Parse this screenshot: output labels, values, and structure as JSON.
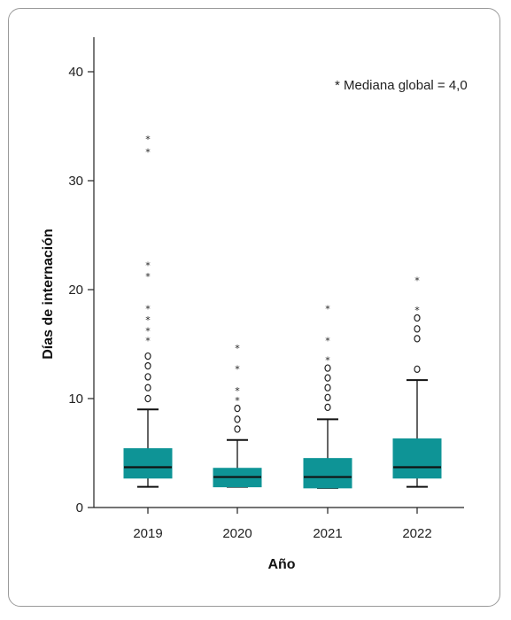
{
  "chart_data": {
    "type": "boxplot",
    "xlabel": "Año",
    "ylabel": "Días de internación",
    "ylim": [
      0,
      43
    ],
    "yticks": [
      0,
      10,
      20,
      30,
      40
    ],
    "annotation": "* Mediana global = 4,0",
    "colors": {
      "box": "#0e9496",
      "median": "#111111",
      "axis": "#222222"
    },
    "categories": [
      "2019",
      "2020",
      "2021",
      "2022"
    ],
    "boxes": [
      {
        "category": "2019",
        "whisker_low": 1.9,
        "q1": 2.7,
        "median": 3.7,
        "q3": 5.4,
        "whisker_high": 9.0,
        "outliers_circle": [
          10.0,
          11.0,
          12.0,
          13.0,
          13.9
        ],
        "outliers_star": [
          15.5,
          16.4,
          17.4,
          18.4,
          21.4,
          22.4,
          32.8,
          34.0
        ]
      },
      {
        "category": "2020",
        "whisker_low": 1.9,
        "q1": 1.9,
        "median": 2.8,
        "q3": 3.6,
        "whisker_high": 6.2,
        "outliers_circle": [
          7.2,
          8.1,
          9.1
        ],
        "outliers_star": [
          10.0,
          10.9,
          12.9,
          14.8
        ]
      },
      {
        "category": "2021",
        "whisker_low": 1.8,
        "q1": 1.8,
        "median": 2.8,
        "q3": 4.5,
        "whisker_high": 8.1,
        "outliers_circle": [
          9.2,
          10.1,
          11.0,
          11.9,
          12.8
        ],
        "outliers_star": [
          13.7,
          15.5,
          18.4
        ]
      },
      {
        "category": "2022",
        "whisker_low": 1.9,
        "q1": 2.7,
        "median": 3.7,
        "q3": 6.3,
        "whisker_high": 11.7,
        "outliers_circle": [
          12.7,
          15.5,
          16.4,
          17.4
        ],
        "outliers_star": [
          18.3,
          21.0
        ]
      }
    ]
  }
}
